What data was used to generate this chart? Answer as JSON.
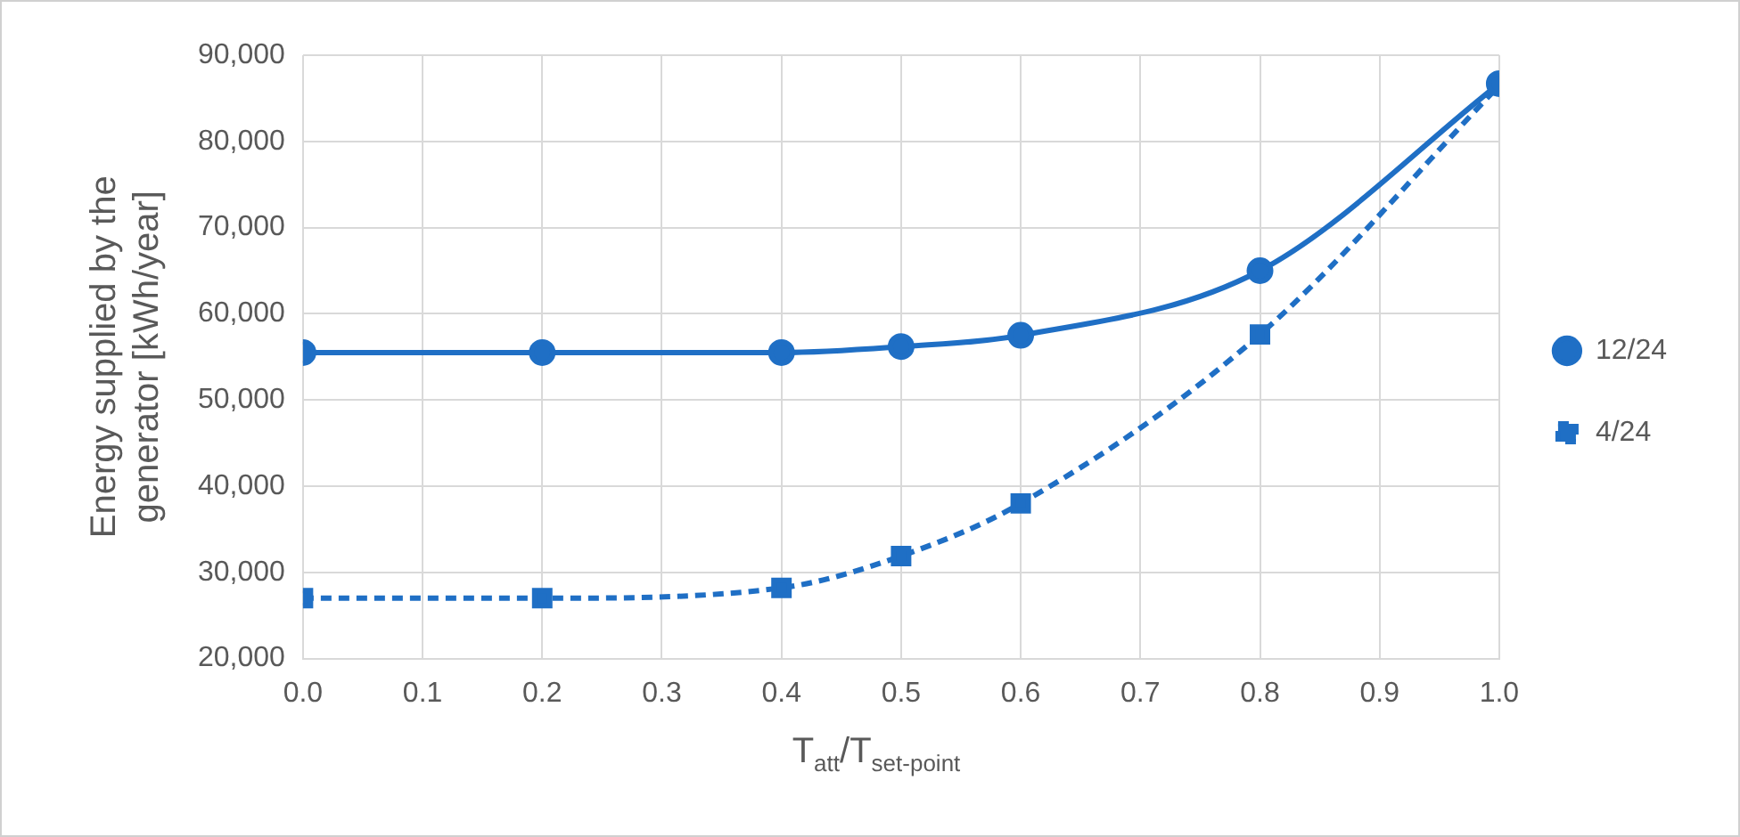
{
  "chart_data": {
    "type": "line",
    "xlabel": "T$_{att}$/T$_{set-point}$",
    "ylabel": "Energy supplied by the generator [kWh/year]",
    "x": [
      0,
      0.2,
      0.4,
      0.5,
      0.6,
      0.8,
      1.0
    ],
    "series": [
      {
        "name": "12/24",
        "color": "#1f6fc5",
        "marker": "circle",
        "line_style": "solid",
        "values": [
          55500,
          55500,
          55500,
          56200,
          57500,
          65000,
          86700
        ]
      },
      {
        "name": "4/24",
        "color": "#1f6fc5",
        "marker": "square",
        "line_style": "dashed",
        "values": [
          27000,
          27000,
          28200,
          31900,
          38000,
          57600,
          86500
        ]
      }
    ],
    "xlim": [
      0,
      1
    ],
    "xticks": [
      {
        "value": 0,
        "label": "0.0"
      },
      {
        "value": 0.1,
        "label": "0.1"
      },
      {
        "value": 0.2,
        "label": "0.2"
      },
      {
        "value": 0.3,
        "label": "0.3"
      },
      {
        "value": 0.4,
        "label": "0.4"
      },
      {
        "value": 0.5,
        "label": "0.5"
      },
      {
        "value": 0.6,
        "label": "0.6"
      },
      {
        "value": 0.7,
        "label": "0.7"
      },
      {
        "value": 0.8,
        "label": "0.8"
      },
      {
        "value": 0.9,
        "label": "0.9"
      },
      {
        "value": 1,
        "label": "1.0"
      }
    ],
    "ylim": [
      20000,
      90000
    ],
    "yticks": [
      {
        "value": 20000,
        "label": "20,000"
      },
      {
        "value": 30000,
        "label": "30,000"
      },
      {
        "value": 40000,
        "label": "40,000"
      },
      {
        "value": 50000,
        "label": "50,000"
      },
      {
        "value": 60000,
        "label": "60,000"
      },
      {
        "value": 70000,
        "label": "70,000"
      },
      {
        "value": 80000,
        "label": "80,000"
      },
      {
        "value": 90000,
        "label": "90,000"
      }
    ],
    "grid": true,
    "legend": "right"
  }
}
